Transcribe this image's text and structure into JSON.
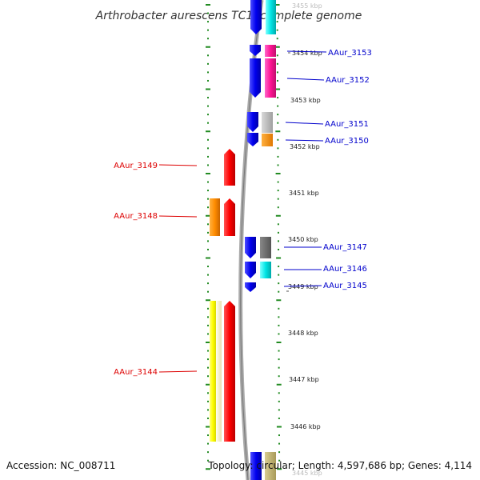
{
  "title": "Arthrobacter aurescens TC1, complete genome",
  "accession": "Accession: NC_008711",
  "topology": "Topology: circular; Length: 4,597,686 bp; Genes: 4,114",
  "colors": {
    "forward_label": "#dd0000",
    "reverse_label": "#0000cc",
    "tick": "#228b22"
  },
  "ticks": [
    {
      "label": "3455 kbp",
      "faint": true
    },
    {
      "label": "3454 kbp"
    },
    {
      "label": "3453 kbp"
    },
    {
      "label": "3452 kbp"
    },
    {
      "label": "3451 kbp"
    },
    {
      "label": "3450 kbp"
    },
    {
      "label": "3449 kbp"
    },
    {
      "label": "3448 kbp"
    },
    {
      "label": "3447 kbp"
    },
    {
      "label": "3446 kbp"
    },
    {
      "label": "3445 kbp",
      "faint": true
    }
  ],
  "genes": {
    "forward": [
      {
        "name": "AAur_3149"
      },
      {
        "name": "AAur_3148"
      },
      {
        "name": "AAur_3144"
      }
    ],
    "reverse": [
      {
        "name": "AAur_3153"
      },
      {
        "name": "AAur_3152"
      },
      {
        "name": "AAur_3151"
      },
      {
        "name": "AAur_3150"
      },
      {
        "name": "AAur_3147"
      },
      {
        "name": "AAur_3146"
      },
      {
        "name": "AAur_3145"
      }
    ]
  }
}
